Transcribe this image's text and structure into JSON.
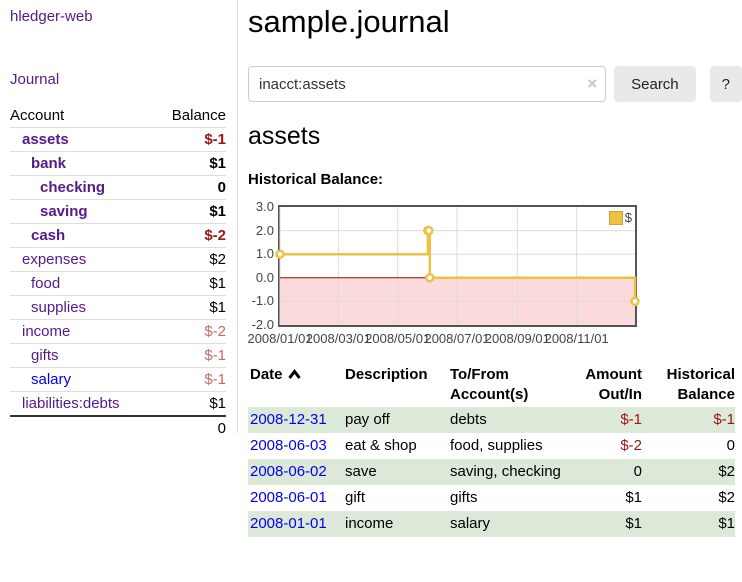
{
  "colors": {
    "link_purple": "#551a8b",
    "link_blue": "#0000ee",
    "negative": "#9e1414",
    "negative_muted": "#c46a6a",
    "row_stripe_green": "#dde9d8",
    "chart_line": "#edc240",
    "negative_region": "#fadada",
    "zero_line": "#a40000"
  },
  "sidebar": {
    "app_title": "hledger-web",
    "journal_link": "Journal",
    "accounts_header": {
      "account": "Account",
      "balance": "Balance"
    },
    "accounts": [
      {
        "name": "assets",
        "depth": 1,
        "bold": true,
        "balance": "$-1"
      },
      {
        "name": "bank",
        "depth": 2,
        "bold": true,
        "balance": "$1"
      },
      {
        "name": "checking",
        "depth": 3,
        "bold": true,
        "balance": "0"
      },
      {
        "name": "saving",
        "depth": 3,
        "bold": true,
        "balance": "$1"
      },
      {
        "name": "cash",
        "depth": 2,
        "bold": true,
        "balance": "$-2"
      },
      {
        "name": "expenses",
        "depth": 1,
        "bold": false,
        "balance": "$2"
      },
      {
        "name": "food",
        "depth": 2,
        "bold": false,
        "balance": "$1"
      },
      {
        "name": "supplies",
        "depth": 2,
        "bold": false,
        "balance": "$1"
      },
      {
        "name": "income",
        "depth": 1,
        "bold": false,
        "balance": "$-2"
      },
      {
        "name": "gifts",
        "depth": 2,
        "bold": false,
        "balance": "$-1"
      },
      {
        "name": "salary",
        "depth": 2,
        "bold": false,
        "balance": "$-1",
        "unvisited": true
      },
      {
        "name": "liabilities:debts",
        "depth": 1,
        "bold": false,
        "balance": "$1"
      }
    ],
    "total": "0"
  },
  "main": {
    "title": "sample.journal",
    "search": {
      "value": "inacct:assets",
      "clear_icon": "×",
      "button_label": "Search",
      "help_label": "?"
    },
    "account_heading": "assets",
    "chart_label": "Historical Balance:"
  },
  "chart_data": {
    "type": "line",
    "step": true,
    "title": "Historical Balance",
    "xlabel": "",
    "ylabel": "",
    "xlim": [
      "2008-01-01",
      "2008-12-31"
    ],
    "ylim": [
      -2,
      3
    ],
    "grid": true,
    "legend_position": "top-right",
    "negative_region_fill": "#fadada",
    "zero_line_color": "#a40000",
    "series": [
      {
        "name": "$",
        "color": "#edc240",
        "points": [
          [
            "2008-01-01",
            1
          ],
          [
            "2008-06-01",
            2
          ],
          [
            "2008-06-02",
            2
          ],
          [
            "2008-06-03",
            0
          ],
          [
            "2008-12-31",
            -1
          ]
        ]
      }
    ],
    "x_ticks": [
      {
        "date": "2008-01-01",
        "label": "2008/01/01"
      },
      {
        "date": "2008-03-01",
        "label": "2008/03/01"
      },
      {
        "date": "2008-05-01",
        "label": "2008/05/01"
      },
      {
        "date": "2008-07-01",
        "label": "2008/07/01"
      },
      {
        "date": "2008-09-01",
        "label": "2008/09/01"
      },
      {
        "date": "2008-11-01",
        "label": "2008/11/01"
      }
    ],
    "y_ticks": [
      {
        "value": 3,
        "label": "3.0"
      },
      {
        "value": 2,
        "label": "2.0"
      },
      {
        "value": 1,
        "label": "1.0"
      },
      {
        "value": 0,
        "label": "0.0"
      },
      {
        "value": -1,
        "label": "-1.0"
      },
      {
        "value": -2,
        "label": "-2.0"
      }
    ]
  },
  "transactions": {
    "headers": [
      {
        "lines": [
          "Date"
        ],
        "sorted": "asc"
      },
      {
        "lines": [
          "Description"
        ]
      },
      {
        "lines": [
          "To/From",
          "Account(s)"
        ]
      },
      {
        "lines": [
          "Amount",
          "Out/In"
        ],
        "align": "right"
      },
      {
        "lines": [
          "Historical",
          "Balance"
        ],
        "align": "right"
      }
    ],
    "rows": [
      {
        "date": "2008-12-31",
        "description": "pay off",
        "accounts": "debts",
        "amount": "$-1",
        "balance": "$-1"
      },
      {
        "date": "2008-06-03",
        "description": "eat & shop",
        "accounts": "food, supplies",
        "amount": "$-2",
        "balance": "0"
      },
      {
        "date": "2008-06-02",
        "description": "save",
        "accounts": "saving, checking",
        "amount": "0",
        "balance": "$2"
      },
      {
        "date": "2008-06-01",
        "description": "gift",
        "accounts": "gifts",
        "amount": "$1",
        "balance": "$2"
      },
      {
        "date": "2008-01-01",
        "description": "income",
        "accounts": "salary",
        "amount": "$1",
        "balance": "$1"
      }
    ]
  }
}
